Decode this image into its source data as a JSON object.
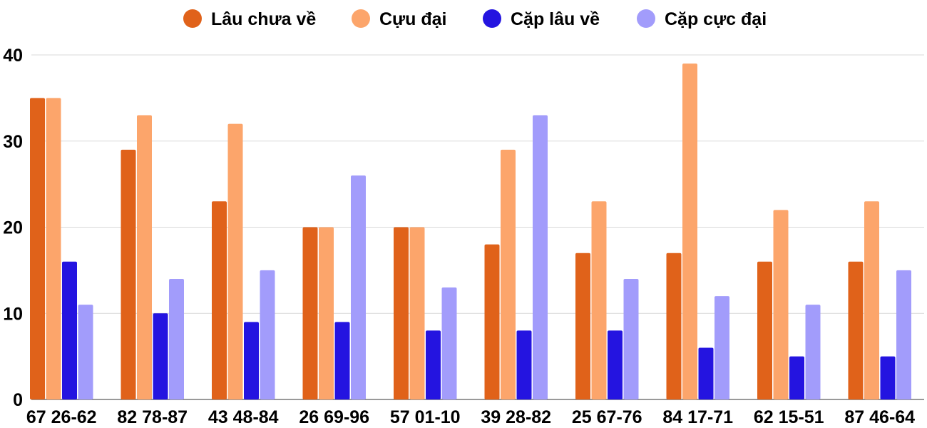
{
  "chart_data": {
    "type": "bar",
    "title": "",
    "xlabel": "",
    "ylabel": "",
    "ylim": [
      0,
      40
    ],
    "yticks": [
      0,
      10,
      20,
      30,
      40
    ],
    "grid": true,
    "legend_position": "top-center",
    "categories": [
      "67 26-62",
      "82 78-87",
      "43 48-84",
      "26 69-96",
      "57 01-10",
      "39 28-82",
      "25 67-76",
      "84 17-71",
      "62 15-51",
      "87 46-64"
    ],
    "series": [
      {
        "name": "Lâu chưa về",
        "color": "#e0621a",
        "values": [
          35,
          29,
          23,
          20,
          20,
          18,
          17,
          17,
          16,
          16
        ]
      },
      {
        "name": "Cựu đại",
        "color": "#fca56b",
        "values": [
          35,
          33,
          32,
          20,
          20,
          29,
          23,
          39,
          22,
          23
        ]
      },
      {
        "name": "Cặp lâu về",
        "color": "#2414e0",
        "values": [
          16,
          10,
          9,
          9,
          8,
          8,
          8,
          6,
          5,
          5
        ]
      },
      {
        "name": "Cặp cực đại",
        "color": "#a29cfb",
        "values": [
          11,
          14,
          15,
          26,
          13,
          33,
          14,
          12,
          11,
          15
        ]
      }
    ]
  }
}
